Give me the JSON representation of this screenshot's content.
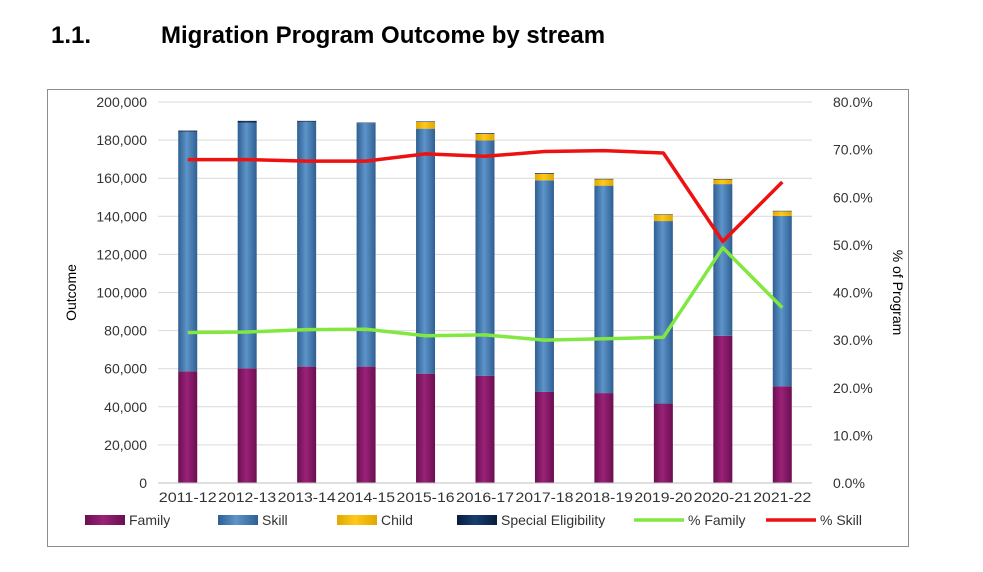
{
  "heading": {
    "number": "1.1.",
    "title": "Migration Program Outcome by stream"
  },
  "chart_data": {
    "type": "bar",
    "stacked": true,
    "categories": [
      "2011-12",
      "2012-13",
      "2013-14",
      "2014-15",
      "2015-16",
      "2016-17",
      "2017-18",
      "2018-19",
      "2019-20",
      "2020-21",
      "2021-22"
    ],
    "series": [
      {
        "name": "Family",
        "color": "#8b1a6b",
        "axis": "left",
        "values": [
          58600,
          60200,
          61100,
          61100,
          57400,
          56200,
          47800,
          47200,
          41700,
          77300,
          50800
        ]
      },
      {
        "name": "Skill",
        "color": "#4a7fb5",
        "axis": "left",
        "values": [
          125800,
          128900,
          128500,
          127800,
          128600,
          123600,
          111100,
          108900,
          95800,
          79600,
          89400
        ]
      },
      {
        "name": "Child",
        "color": "#ffc000",
        "axis": "left",
        "values": [
          0,
          0,
          0,
          0,
          3500,
          3400,
          3350,
          3350,
          3350,
          2550,
          2480
        ]
      },
      {
        "name": "Special Eligibility",
        "color": "#0d2a52",
        "axis": "left",
        "values": [
          600,
          1000,
          500,
          300,
          300,
          400,
          400,
          200,
          200,
          100,
          200
        ]
      },
      {
        "name": "% Family",
        "type": "line",
        "color": "#80e840",
        "axis": "right",
        "values": [
          31.6,
          31.7,
          32.2,
          32.3,
          30.9,
          31.1,
          30.0,
          30.3,
          30.6,
          49.4,
          36.8
        ]
      },
      {
        "name": "% Skill",
        "type": "line",
        "color": "#ee1111",
        "axis": "right",
        "values": [
          67.9,
          67.9,
          67.6,
          67.6,
          69.1,
          68.6,
          69.6,
          69.8,
          69.3,
          50.7,
          63.2
        ]
      }
    ],
    "ylabel": "Outcome",
    "ylabel_right": "% of Program",
    "ylim": [
      0,
      200000
    ],
    "ylim_right": [
      0,
      80
    ],
    "yticks": [
      "0",
      "20,000",
      "40,000",
      "60,000",
      "80,000",
      "100,000",
      "120,000",
      "140,000",
      "160,000",
      "180,000",
      "200,000"
    ],
    "yticks_right": [
      "0.0%",
      "10.0%",
      "20.0%",
      "30.0%",
      "40.0%",
      "50.0%",
      "60.0%",
      "70.0%",
      "80.0%"
    ],
    "grid": true,
    "legend": "bottom"
  }
}
